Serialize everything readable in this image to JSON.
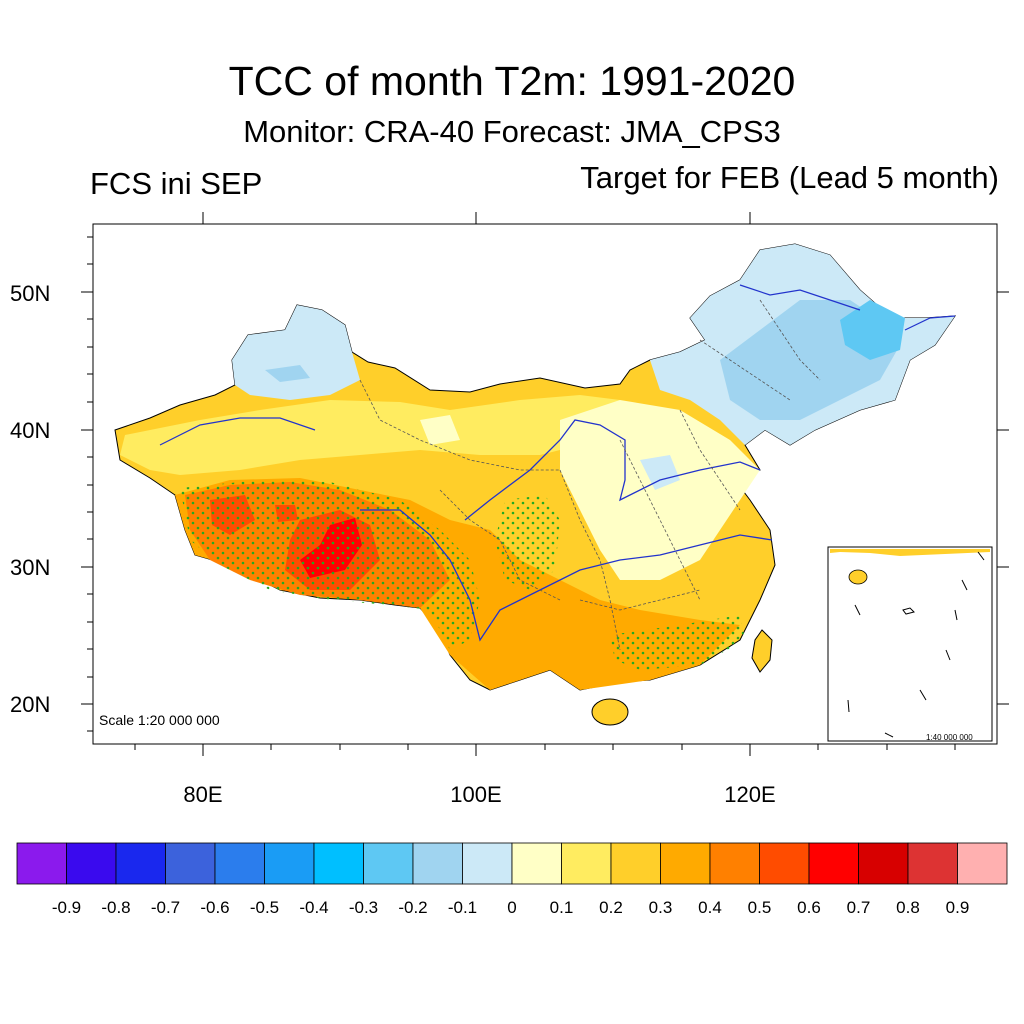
{
  "title": "TCC of month T2m: 1991-2020",
  "subtitle": "Monitor: CRA-40   Forecast: JMA_CPS3",
  "left_label": "FCS ini SEP",
  "right_label": "Target for FEB (Lead 5 month)",
  "lat_labels": [
    "50N",
    "40N",
    "30N",
    "20N"
  ],
  "lon_labels": [
    "80E",
    "100E",
    "120E"
  ],
  "scale_main": "Scale 1:20 000 000",
  "scale_inset": "1:40 000 000",
  "colorbar": {
    "labels": [
      "-0.9",
      "-0.8",
      "-0.7",
      "-0.6",
      "-0.5",
      "-0.4",
      "-0.3",
      "-0.2",
      "-0.1",
      "0",
      "0.1",
      "0.2",
      "0.3",
      "0.4",
      "0.5",
      "0.6",
      "0.7",
      "0.8",
      "0.9"
    ],
    "colors": [
      "#8b1aed",
      "#3a0aee",
      "#1a28ee",
      "#3c62dc",
      "#2b7ded",
      "#1a9cf5",
      "#00bfff",
      "#5ec8f3",
      "#a0d4f0",
      "#cce9f7",
      "#ffffc6",
      "#ffec60",
      "#ffcf2a",
      "#ffaa00",
      "#ff8000",
      "#ff4c00",
      "#ff0000",
      "#d70000",
      "#dd3333",
      "#ffb0b0"
    ]
  }
}
